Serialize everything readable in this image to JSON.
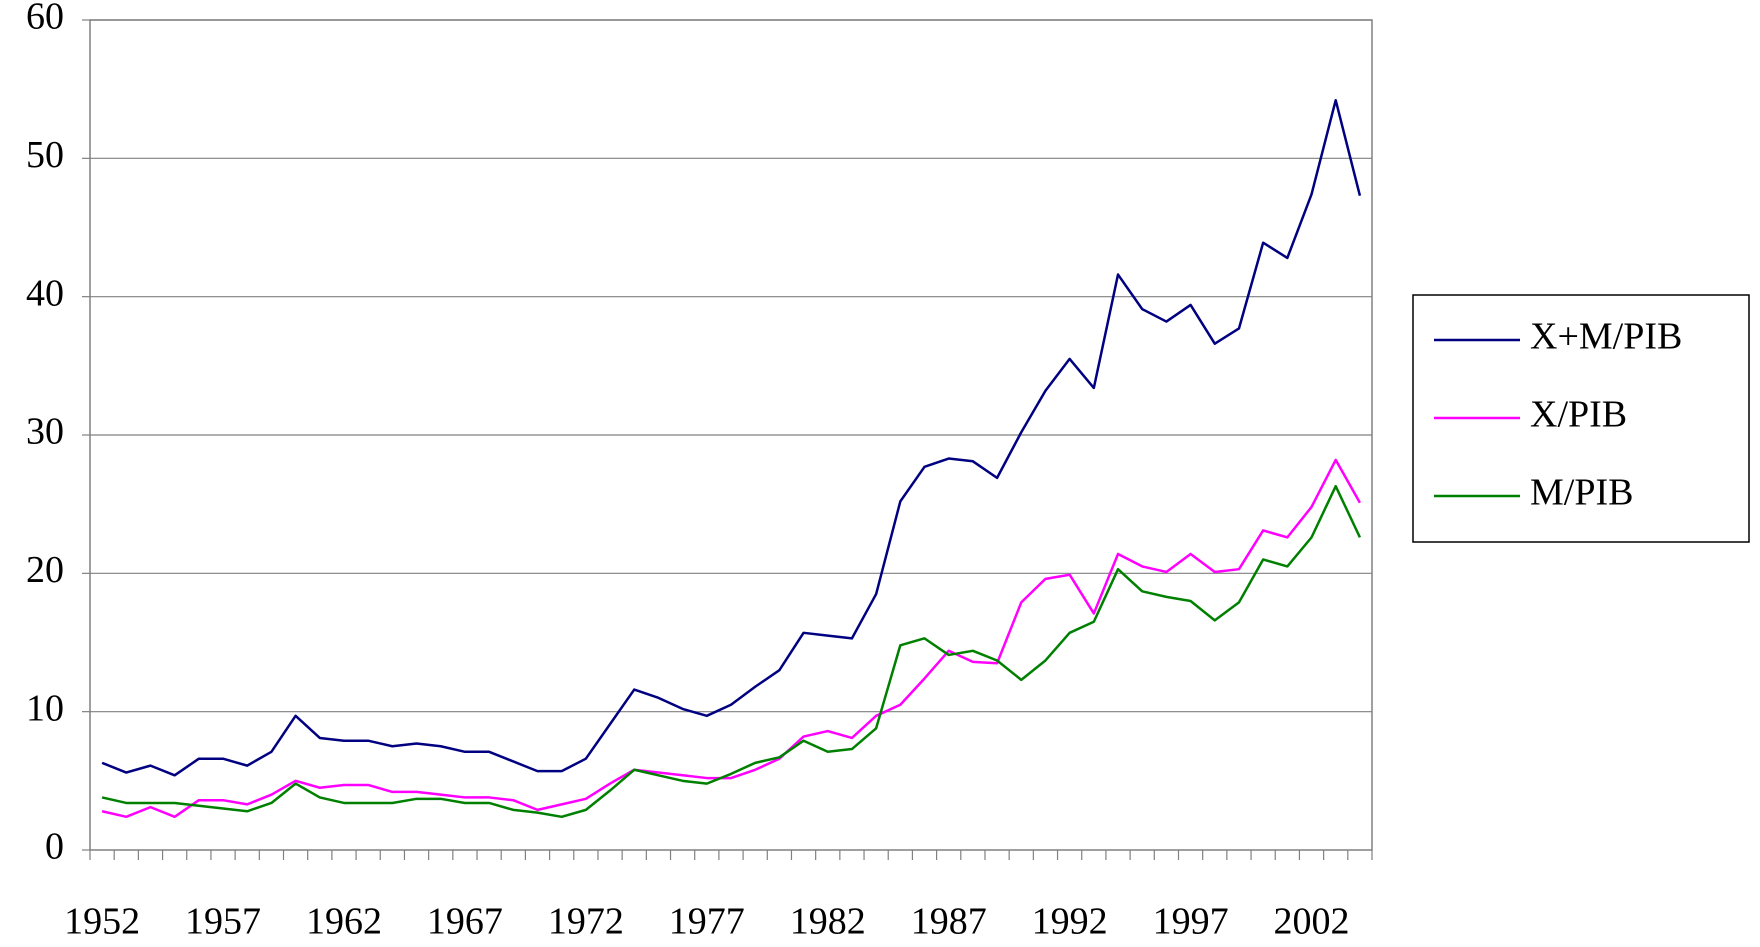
{
  "chart_data": {
    "type": "line",
    "categories": [
      "1952",
      null,
      null,
      null,
      null,
      "1957",
      null,
      null,
      null,
      null,
      "1962",
      null,
      null,
      null,
      null,
      "1967",
      null,
      null,
      null,
      null,
      "1972",
      null,
      null,
      null,
      null,
      "1977",
      null,
      null,
      null,
      null,
      "1982",
      null,
      null,
      null,
      null,
      "1987",
      null,
      null,
      null,
      null,
      "1992",
      null,
      null,
      null,
      null,
      "1997",
      null,
      null,
      null,
      null,
      "2002",
      null,
      null
    ],
    "series": [
      {
        "name": "X+M/PIB",
        "color": "#000080",
        "values": [
          6.3,
          5.6,
          6.1,
          5.4,
          6.6,
          6.6,
          6.1,
          7.1,
          9.7,
          8.1,
          7.9,
          7.9,
          7.5,
          7.7,
          7.5,
          7.1,
          7.1,
          6.4,
          5.7,
          5.7,
          6.6,
          9.1,
          11.6,
          11.0,
          10.2,
          9.7,
          10.5,
          11.8,
          13.0,
          15.7,
          15.5,
          15.3,
          18.5,
          25.2,
          27.7,
          28.3,
          28.1,
          26.9,
          30.2,
          33.2,
          35.5,
          33.4,
          41.6,
          39.1,
          38.2,
          39.4,
          36.6,
          37.7,
          43.9,
          42.8,
          47.4,
          54.2,
          47.3
        ]
      },
      {
        "name": "X/PIB",
        "color": "#ff00ff",
        "values": [
          2.8,
          2.4,
          3.1,
          2.4,
          3.6,
          3.6,
          3.3,
          4.0,
          5.0,
          4.5,
          4.7,
          4.7,
          4.2,
          4.2,
          4.0,
          3.8,
          3.8,
          3.6,
          2.9,
          3.3,
          3.7,
          4.8,
          5.8,
          5.6,
          5.4,
          5.2,
          5.2,
          5.8,
          6.6,
          8.2,
          8.6,
          8.1,
          9.7,
          10.5,
          12.4,
          14.4,
          13.6,
          13.5,
          17.9,
          19.6,
          19.9,
          17.1,
          21.4,
          20.5,
          20.1,
          21.4,
          20.1,
          20.3,
          23.1,
          22.6,
          24.8,
          28.2,
          25.1
        ]
      },
      {
        "name": "M/PIB",
        "color": "#008000",
        "values": [
          3.8,
          3.4,
          3.4,
          3.4,
          3.2,
          3.0,
          2.8,
          3.4,
          4.8,
          3.8,
          3.4,
          3.4,
          3.4,
          3.7,
          3.7,
          3.4,
          3.4,
          2.9,
          2.7,
          2.4,
          2.9,
          4.3,
          5.8,
          5.4,
          5.0,
          4.8,
          5.5,
          6.3,
          6.7,
          7.9,
          7.1,
          7.3,
          8.8,
          14.8,
          15.3,
          14.1,
          14.4,
          13.7,
          12.3,
          13.7,
          15.7,
          16.5,
          20.3,
          18.7,
          18.3,
          18.0,
          16.6,
          17.9,
          21.0,
          20.5,
          22.6,
          26.3,
          22.6
        ]
      }
    ],
    "ylim": [
      0,
      60
    ],
    "yticks": [
      0,
      10,
      20,
      30,
      40,
      50,
      60
    ],
    "grid": true,
    "legend": "right"
  }
}
